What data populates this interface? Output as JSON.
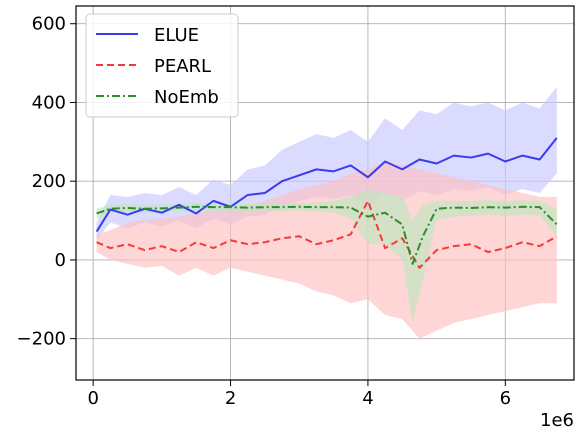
{
  "chart_data": {
    "type": "line",
    "title": "",
    "xlabel": "",
    "ylabel": "",
    "x_offset_label": "1e6",
    "xlim": [
      -0.25,
      7.0
    ],
    "ylim": [
      -305,
      645
    ],
    "xticks": [
      0,
      2,
      4,
      6
    ],
    "xtick_labels": [
      "0",
      "2",
      "4",
      "6"
    ],
    "yticks": [
      -200,
      0,
      200,
      400,
      600
    ],
    "ytick_labels": [
      "−200",
      "0",
      "200",
      "400",
      "600"
    ],
    "grid": true,
    "legend_placement": "top-left",
    "series": [
      {
        "name": "ELUE",
        "color": "#3b3bf0",
        "band_color": "#c8c8ff",
        "linestyle": "solid",
        "x": [
          0.05,
          0.25,
          0.5,
          0.75,
          1.0,
          1.25,
          1.5,
          1.75,
          2.0,
          2.25,
          2.5,
          2.75,
          3.0,
          3.25,
          3.5,
          3.75,
          4.0,
          4.25,
          4.5,
          4.75,
          5.0,
          5.25,
          5.5,
          5.75,
          6.0,
          6.25,
          6.5,
          6.75
        ],
        "y": [
          72,
          128,
          115,
          130,
          120,
          140,
          118,
          150,
          135,
          165,
          170,
          200,
          215,
          230,
          225,
          240,
          210,
          250,
          230,
          255,
          245,
          265,
          260,
          270,
          250,
          265,
          255,
          310
        ],
        "lower": [
          50,
          95,
          80,
          95,
          85,
          100,
          80,
          105,
          90,
          110,
          115,
          135,
          150,
          160,
          155,
          165,
          135,
          170,
          150,
          175,
          165,
          180,
          175,
          185,
          165,
          180,
          170,
          220
        ],
        "upper": [
          95,
          165,
          160,
          170,
          165,
          185,
          165,
          205,
          190,
          230,
          240,
          280,
          300,
          320,
          310,
          330,
          300,
          360,
          330,
          380,
          370,
          400,
          390,
          400,
          380,
          400,
          385,
          440
        ]
      },
      {
        "name": "PEARL",
        "color": "#f03c3c",
        "band_color": "#ffc0c0",
        "linestyle": "dashed",
        "x": [
          0.05,
          0.25,
          0.5,
          0.75,
          1.0,
          1.25,
          1.5,
          1.75,
          2.0,
          2.25,
          2.5,
          2.75,
          3.0,
          3.25,
          3.5,
          3.75,
          4.0,
          4.25,
          4.5,
          4.75,
          5.0,
          5.25,
          5.5,
          5.75,
          6.0,
          6.25,
          6.5,
          6.75
        ],
        "y": [
          45,
          30,
          40,
          25,
          35,
          20,
          45,
          30,
          50,
          40,
          45,
          55,
          60,
          40,
          50,
          65,
          150,
          30,
          55,
          -20,
          25,
          35,
          40,
          20,
          30,
          45,
          35,
          60
        ],
        "lower": [
          20,
          0,
          -10,
          -20,
          -15,
          -40,
          -20,
          -40,
          -20,
          -30,
          -40,
          -50,
          -60,
          -80,
          -90,
          -110,
          -100,
          -140,
          -150,
          -200,
          -180,
          -160,
          -150,
          -140,
          -130,
          -120,
          -110,
          -110
        ],
        "upper": [
          65,
          75,
          95,
          100,
          105,
          110,
          120,
          125,
          130,
          140,
          150,
          165,
          180,
          190,
          200,
          220,
          230,
          250,
          240,
          230,
          220,
          210,
          200,
          190,
          180,
          170,
          160,
          160
        ]
      },
      {
        "name": "NoEmb",
        "color": "#2e8b2e",
        "band_color": "#bfe6bf",
        "linestyle": "dashdot",
        "x": [
          0.05,
          0.25,
          0.5,
          0.75,
          1.0,
          1.25,
          1.5,
          1.75,
          2.0,
          2.25,
          2.5,
          2.75,
          3.0,
          3.25,
          3.5,
          3.75,
          4.0,
          4.25,
          4.5,
          4.65,
          4.8,
          5.0,
          5.25,
          5.5,
          5.75,
          6.0,
          6.25,
          6.5,
          6.75
        ],
        "y": [
          118,
          130,
          132,
          130,
          131,
          133,
          135,
          134,
          134,
          133,
          134,
          134,
          135,
          134,
          134,
          133,
          110,
          120,
          90,
          -10,
          60,
          130,
          133,
          132,
          134,
          133,
          135,
          134,
          90
        ],
        "lower": [
          105,
          120,
          122,
          120,
          121,
          123,
          125,
          124,
          124,
          123,
          124,
          124,
          125,
          124,
          120,
          105,
          40,
          40,
          0,
          -160,
          -50,
          100,
          110,
          112,
          115,
          112,
          115,
          112,
          60
        ],
        "upper": [
          130,
          140,
          142,
          140,
          141,
          143,
          145,
          144,
          144,
          143,
          144,
          144,
          145,
          146,
          150,
          160,
          180,
          170,
          160,
          100,
          140,
          150,
          150,
          150,
          152,
          150,
          152,
          150,
          130
        ]
      }
    ]
  }
}
